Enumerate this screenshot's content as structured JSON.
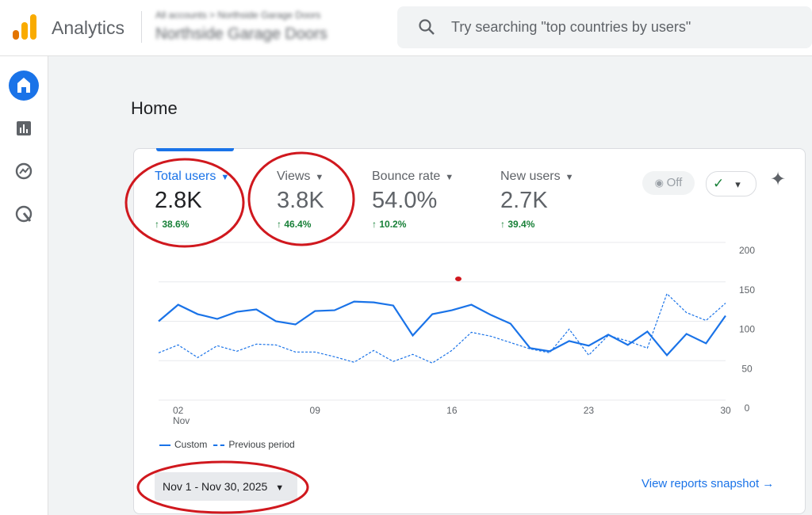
{
  "header": {
    "app_name": "Analytics",
    "breadcrumb": "All accounts > Northside Garage Doors",
    "property": "Northside Garage Doors",
    "search_placeholder": "Try searching \"top countries by users\""
  },
  "page": {
    "title": "Home"
  },
  "metrics": [
    {
      "label": "Total users",
      "value": "2.8K",
      "change": "38.6%"
    },
    {
      "label": "Views",
      "value": "3.8K",
      "change": "46.4%"
    },
    {
      "label": "Bounce rate",
      "value": "54.0%",
      "change": "10.2%"
    },
    {
      "label": "New users",
      "value": "2.7K",
      "change": "39.4%"
    }
  ],
  "toggle_label": "Off",
  "date_range": "Nov 1 - Nov 30, 2025",
  "link": "View reports snapshot",
  "chart_data": {
    "type": "line",
    "x": [
      1,
      2,
      3,
      4,
      5,
      6,
      7,
      8,
      9,
      10,
      11,
      12,
      13,
      14,
      15,
      16,
      17,
      18,
      19,
      20,
      21,
      22,
      23,
      24,
      25,
      26,
      27,
      28,
      29,
      30
    ],
    "xlim": [
      1,
      30
    ],
    "xticks": [
      {
        "value": 2,
        "label": "02"
      },
      {
        "value": 9,
        "label": "09"
      },
      16,
      23,
      30
    ],
    "x_sublabel": "Nov",
    "ylim": [
      0,
      200
    ],
    "yticks": [
      0,
      50,
      100,
      150,
      200
    ],
    "grid": true,
    "series": [
      {
        "name": "Custom",
        "color": "#1a73e8",
        "style": "solid",
        "values": [
          100,
          121,
          109,
          103,
          112,
          115,
          100,
          96,
          113,
          114,
          125,
          124,
          120,
          82,
          109,
          114,
          121,
          108,
          97,
          66,
          62,
          75,
          69,
          83,
          70,
          87,
          57,
          84,
          72,
          107
        ]
      },
      {
        "name": "Previous period",
        "color": "#1a73e8",
        "style": "dashed",
        "values": [
          60,
          70,
          54,
          69,
          62,
          71,
          70,
          61,
          61,
          55,
          48,
          63,
          49,
          58,
          47,
          63,
          86,
          81,
          73,
          65,
          60,
          90,
          57,
          82,
          75,
          66,
          135,
          111,
          101,
          123
        ]
      }
    ]
  }
}
